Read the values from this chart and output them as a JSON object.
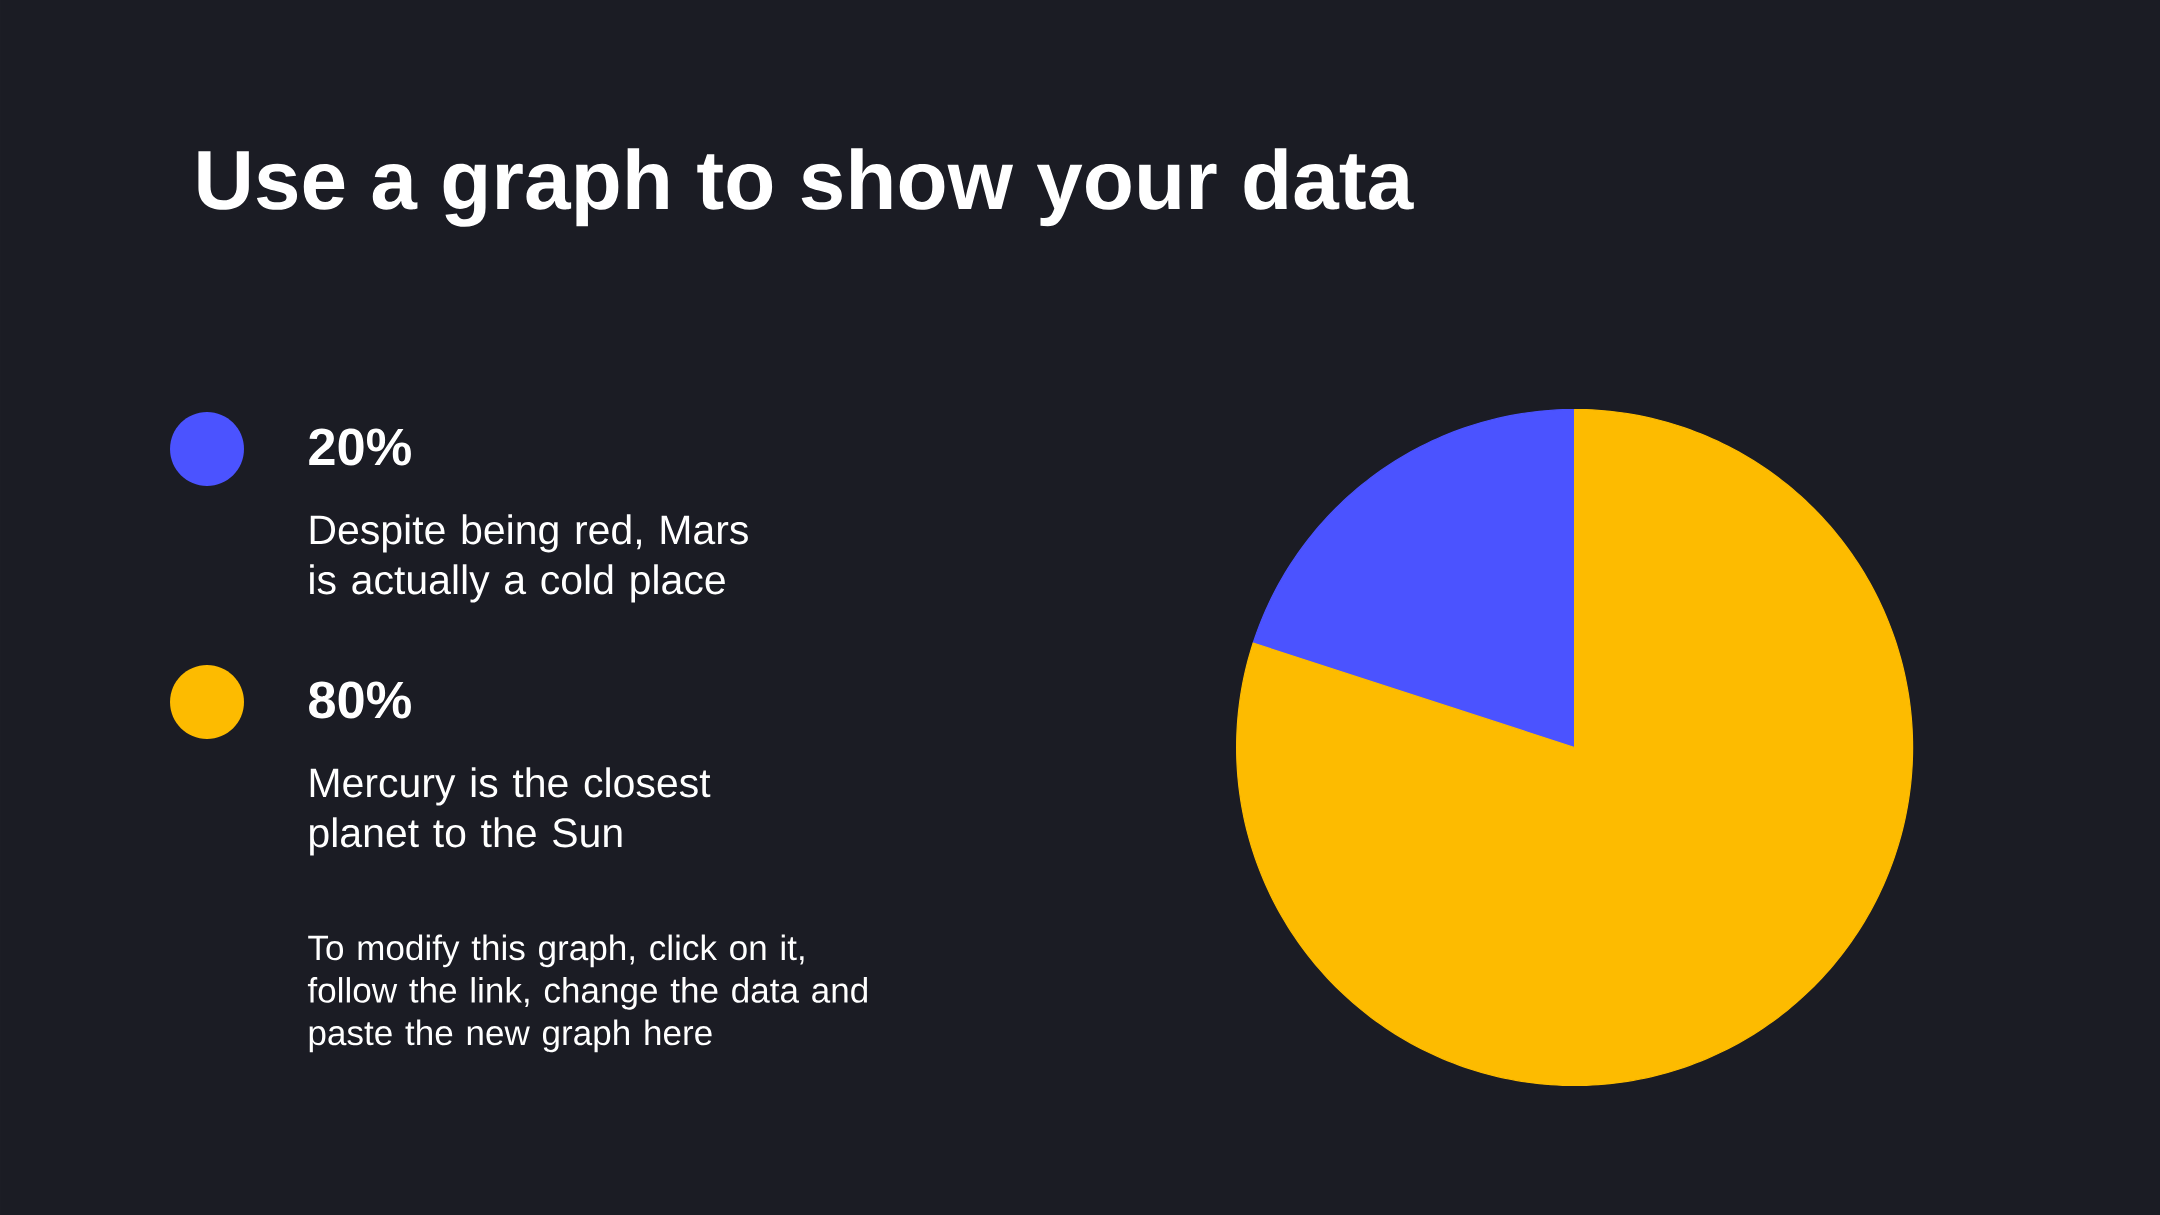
{
  "chart_data": {
    "type": "pie",
    "title": "Use a graph to show your data",
    "categories": [
      "20%",
      "80%"
    ],
    "values": [
      20,
      80
    ],
    "colors": [
      "#4b53ff",
      "#fdbb00"
    ],
    "legend": "left",
    "annotations": [
      "Despite being red, Mars is actually a cold place",
      "Mercury is the closest planet to the Sun",
      "To modify this graph, click on it, follow the link, change the data and paste the new graph here"
    ]
  }
}
